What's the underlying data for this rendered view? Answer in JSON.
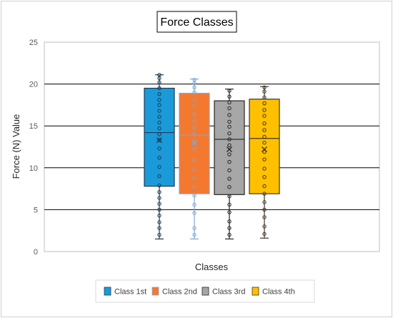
{
  "chart_data": {
    "type": "box",
    "title": "Force Classes",
    "xlabel": "Classes",
    "ylabel": "Force (N) Value",
    "ylim": [
      0,
      25
    ],
    "yticks": [
      "0",
      "5",
      "10",
      "15",
      "20",
      "25"
    ],
    "grid": true,
    "legend_position": "bottom",
    "series": [
      {
        "name": "Class 1st",
        "color": "#1B9ADA",
        "edge": "#1D3B52",
        "min": 1.5,
        "q1": 7.8,
        "median": 14.2,
        "q3": 19.5,
        "max": 21.1,
        "mean": 13.3,
        "points": [
          2.0,
          2.8,
          3.5,
          4.3,
          5.0,
          5.7,
          6.4,
          7.1,
          7.9,
          9.0,
          10.1,
          11.2,
          12.3,
          13.3,
          14.0,
          14.7,
          15.4,
          16.1,
          16.8,
          17.5,
          18.1,
          18.8,
          19.5,
          20.2,
          20.7,
          21.1
        ]
      },
      {
        "name": "Class 2nd",
        "color": "#F5782F",
        "edge": "#7FA7D1",
        "min": 1.5,
        "q1": 6.9,
        "median": 13.9,
        "q3": 18.9,
        "max": 20.6,
        "mean": 13.0,
        "points": [
          2.0,
          2.8,
          4.6,
          5.6,
          6.7,
          7.7,
          8.8,
          9.8,
          10.9,
          12.2,
          13.0,
          14.0,
          14.8,
          15.6,
          16.4,
          17.4,
          18.2,
          19.0,
          19.6,
          20.1,
          20.5
        ]
      },
      {
        "name": "Class 3rd",
        "color": "#A6A6A6",
        "edge": "#262626",
        "min": 1.5,
        "q1": 6.8,
        "median": 13.4,
        "q3": 18.0,
        "max": 19.4,
        "mean": 12.2,
        "points": [
          2.0,
          2.8,
          3.6,
          4.7,
          5.6,
          6.6,
          7.7,
          8.7,
          9.7,
          10.7,
          11.6,
          12.7,
          13.4,
          14.1,
          14.9,
          15.5,
          16.3,
          17.1,
          17.8,
          18.5,
          19.2
        ]
      },
      {
        "name": "Class 4th",
        "color": "#FFC000",
        "edge": "#3F3526",
        "min": 1.6,
        "q1": 6.9,
        "median": 13.5,
        "q3": 18.2,
        "max": 19.7,
        "mean": 12.2,
        "points": [
          2.1,
          3.0,
          4.1,
          5.0,
          5.9,
          6.9,
          7.8,
          8.9,
          9.9,
          11.0,
          11.9,
          13.0,
          13.7,
          14.5,
          15.3,
          16.2,
          16.9,
          17.7,
          18.4,
          19.1,
          19.6
        ]
      }
    ]
  }
}
